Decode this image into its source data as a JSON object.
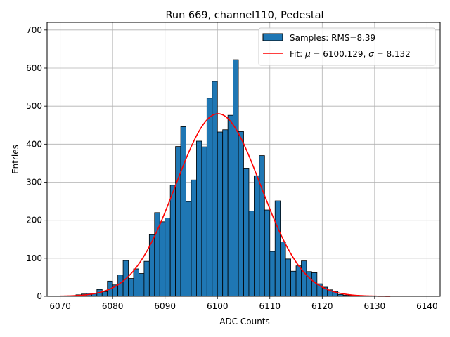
{
  "chart_data": {
    "type": "bar",
    "title": "Run 669, channel110, Pedestal",
    "xlabel": "ADC Counts",
    "ylabel": "Entries",
    "xlim": [
      6067.5,
      6142.5
    ],
    "ylim": [
      0,
      720
    ],
    "xticks": [
      6070,
      6080,
      6090,
      6100,
      6110,
      6120,
      6130,
      6140
    ],
    "yticks": [
      0,
      100,
      200,
      300,
      400,
      500,
      600,
      700
    ],
    "grid": true,
    "legend_placement": "top-right",
    "bin_width": 1,
    "series": [
      {
        "name": "Samples: RMS=8.39",
        "kind": "histogram",
        "color": "#1f77b4",
        "edgecolor": "#000000",
        "bins": [
          6071,
          6072,
          6073,
          6074,
          6075,
          6076,
          6077,
          6078,
          6079,
          6080,
          6081,
          6082,
          6083,
          6084,
          6085,
          6086,
          6087,
          6088,
          6089,
          6090,
          6091,
          6092,
          6093,
          6094,
          6095,
          6096,
          6097,
          6098,
          6099,
          6100,
          6101,
          6102,
          6103,
          6104,
          6105,
          6106,
          6107,
          6108,
          6109,
          6110,
          6111,
          6112,
          6113,
          6114,
          6115,
          6116,
          6117,
          6118,
          6119,
          6120,
          6121,
          6122,
          6123,
          6124,
          6125,
          6126,
          6127,
          6128,
          6129,
          6130,
          6131,
          6132,
          6133
        ],
        "values": [
          1,
          1,
          4,
          6,
          8,
          8,
          18,
          12,
          40,
          30,
          56,
          94,
          47,
          72,
          60,
          92,
          162,
          220,
          196,
          206,
          292,
          394,
          446,
          249,
          306,
          408,
          393,
          521,
          565,
          432,
          438,
          476,
          622,
          433,
          337,
          224,
          317,
          370,
          227,
          118,
          251,
          143,
          98,
          66,
          80,
          93,
          65,
          62,
          33,
          24,
          17,
          13,
          5,
          3,
          2,
          1,
          1,
          1,
          0,
          0,
          0,
          0,
          1
        ]
      },
      {
        "name": "Fit: μ = 6100.129, σ = 8.132",
        "kind": "gaussian-fit",
        "color": "#ff0000",
        "mu": 6100.129,
        "sigma": 8.132,
        "peak": 480,
        "x_range": [
          6070,
          6133
        ]
      }
    ],
    "legend": {
      "samples_label": "Samples: RMS=8.39",
      "fit_prefix": "Fit: ",
      "fit_mu": "μ",
      "fit_mid": " = 6100.129, ",
      "fit_sigma": "σ",
      "fit_suffix": " = 8.132"
    }
  }
}
